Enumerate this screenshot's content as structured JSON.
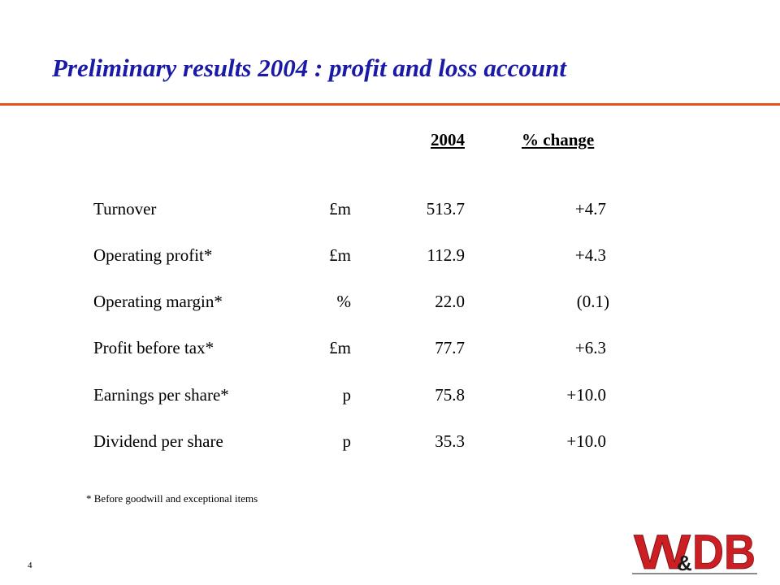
{
  "slide": {
    "title": "Preliminary results 2004 : profit and loss account",
    "page_number": "4",
    "footnote": "* Before goodwill and exceptional items"
  },
  "table": {
    "headers": {
      "year": "2004",
      "change": "% change"
    },
    "rows": [
      {
        "label": "Turnover",
        "unit": "£m",
        "value": "513.7",
        "change": "+4.7"
      },
      {
        "label": "Operating profit*",
        "unit": "£m",
        "value": "112.9",
        "change": "+4.3"
      },
      {
        "label": "Operating margin*",
        "unit": "%",
        "value": "22.0",
        "change": "(0.1)"
      },
      {
        "label": "Profit before tax*",
        "unit": "£m",
        "value": "77.7",
        "change": "+6.3"
      },
      {
        "label": "Earnings per share*",
        "unit": "p",
        "value": "75.8",
        "change": "+10.0"
      },
      {
        "label": "Dividend per share",
        "unit": "p",
        "value": "35.3",
        "change": "+10.0"
      }
    ]
  },
  "logo": {
    "text_left": "W",
    "text_amp": "&",
    "text_right": "DB",
    "color": "#cc1f24"
  },
  "colors": {
    "title": "#1a1aa6",
    "rule": "#e8501e",
    "logo": "#cc1f24"
  }
}
